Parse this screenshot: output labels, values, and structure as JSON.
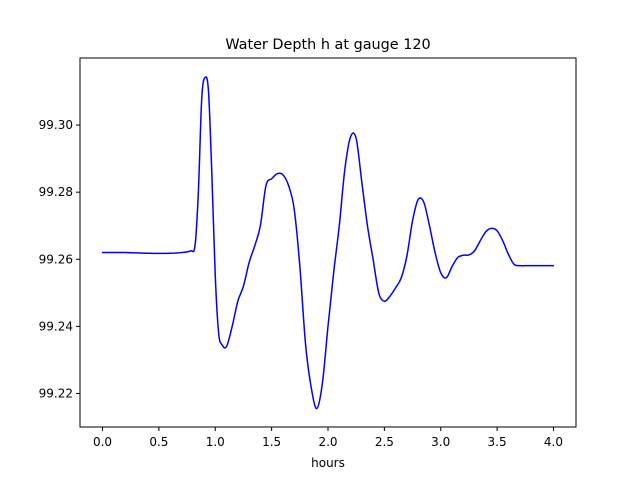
{
  "chart_data": {
    "type": "line",
    "title": "Water Depth h at gauge 120",
    "xlabel": "hours",
    "ylabel": "",
    "xlim": [
      -0.2,
      4.2
    ],
    "ylim": [
      99.21,
      99.32
    ],
    "xticks": [
      0.0,
      0.5,
      1.0,
      1.5,
      2.0,
      2.5,
      3.0,
      3.5,
      4.0
    ],
    "xtick_labels": [
      "0.0",
      "0.5",
      "1.0",
      "1.5",
      "2.0",
      "2.5",
      "3.0",
      "3.5",
      "4.0"
    ],
    "yticks": [
      99.22,
      99.24,
      99.26,
      99.28,
      99.3
    ],
    "ytick_labels": [
      "99.22",
      "99.24",
      "99.26",
      "99.28",
      "99.30"
    ],
    "grid": false,
    "series": [
      {
        "name": "h",
        "color": "#0000ff",
        "x": [
          0.0,
          0.2,
          0.4,
          0.6,
          0.7,
          0.78,
          0.82,
          0.85,
          0.88,
          0.91,
          0.94,
          0.97,
          1.0,
          1.03,
          1.06,
          1.1,
          1.15,
          1.2,
          1.25,
          1.3,
          1.35,
          1.4,
          1.45,
          1.5,
          1.55,
          1.6,
          1.65,
          1.7,
          1.75,
          1.8,
          1.85,
          1.9,
          1.95,
          2.0,
          2.05,
          2.1,
          2.15,
          2.2,
          2.25,
          2.3,
          2.35,
          2.4,
          2.45,
          2.5,
          2.55,
          2.6,
          2.65,
          2.7,
          2.75,
          2.8,
          2.85,
          2.9,
          2.95,
          3.0,
          3.05,
          3.1,
          3.15,
          3.2,
          3.25,
          3.3,
          3.35,
          3.4,
          3.45,
          3.5,
          3.55,
          3.6,
          3.65,
          3.7,
          3.75,
          3.8,
          3.85,
          3.9,
          3.95,
          4.0
        ],
        "y": [
          99.262,
          99.262,
          99.2618,
          99.2618,
          99.262,
          99.2625,
          99.264,
          99.28,
          99.308,
          99.3142,
          99.31,
          99.285,
          99.255,
          99.238,
          99.2345,
          99.234,
          99.24,
          99.2475,
          99.252,
          99.259,
          99.264,
          99.27,
          99.282,
          99.284,
          99.2855,
          99.2852,
          99.282,
          99.275,
          99.258,
          99.235,
          99.222,
          99.2155,
          99.223,
          99.24,
          99.256,
          99.27,
          99.287,
          99.2965,
          99.296,
          99.283,
          99.27,
          99.26,
          99.25,
          99.2475,
          99.249,
          99.2515,
          99.2545,
          99.261,
          99.2715,
          99.2778,
          99.277,
          99.27,
          99.262,
          99.256,
          99.2545,
          99.2578,
          99.2605,
          99.2612,
          99.2613,
          99.2625,
          99.2655,
          99.2682,
          99.2692,
          99.2685,
          99.2655,
          99.2615,
          99.2585,
          99.2581,
          99.2581,
          99.2581,
          99.2581,
          99.2581,
          99.2581,
          99.2581
        ]
      }
    ]
  }
}
